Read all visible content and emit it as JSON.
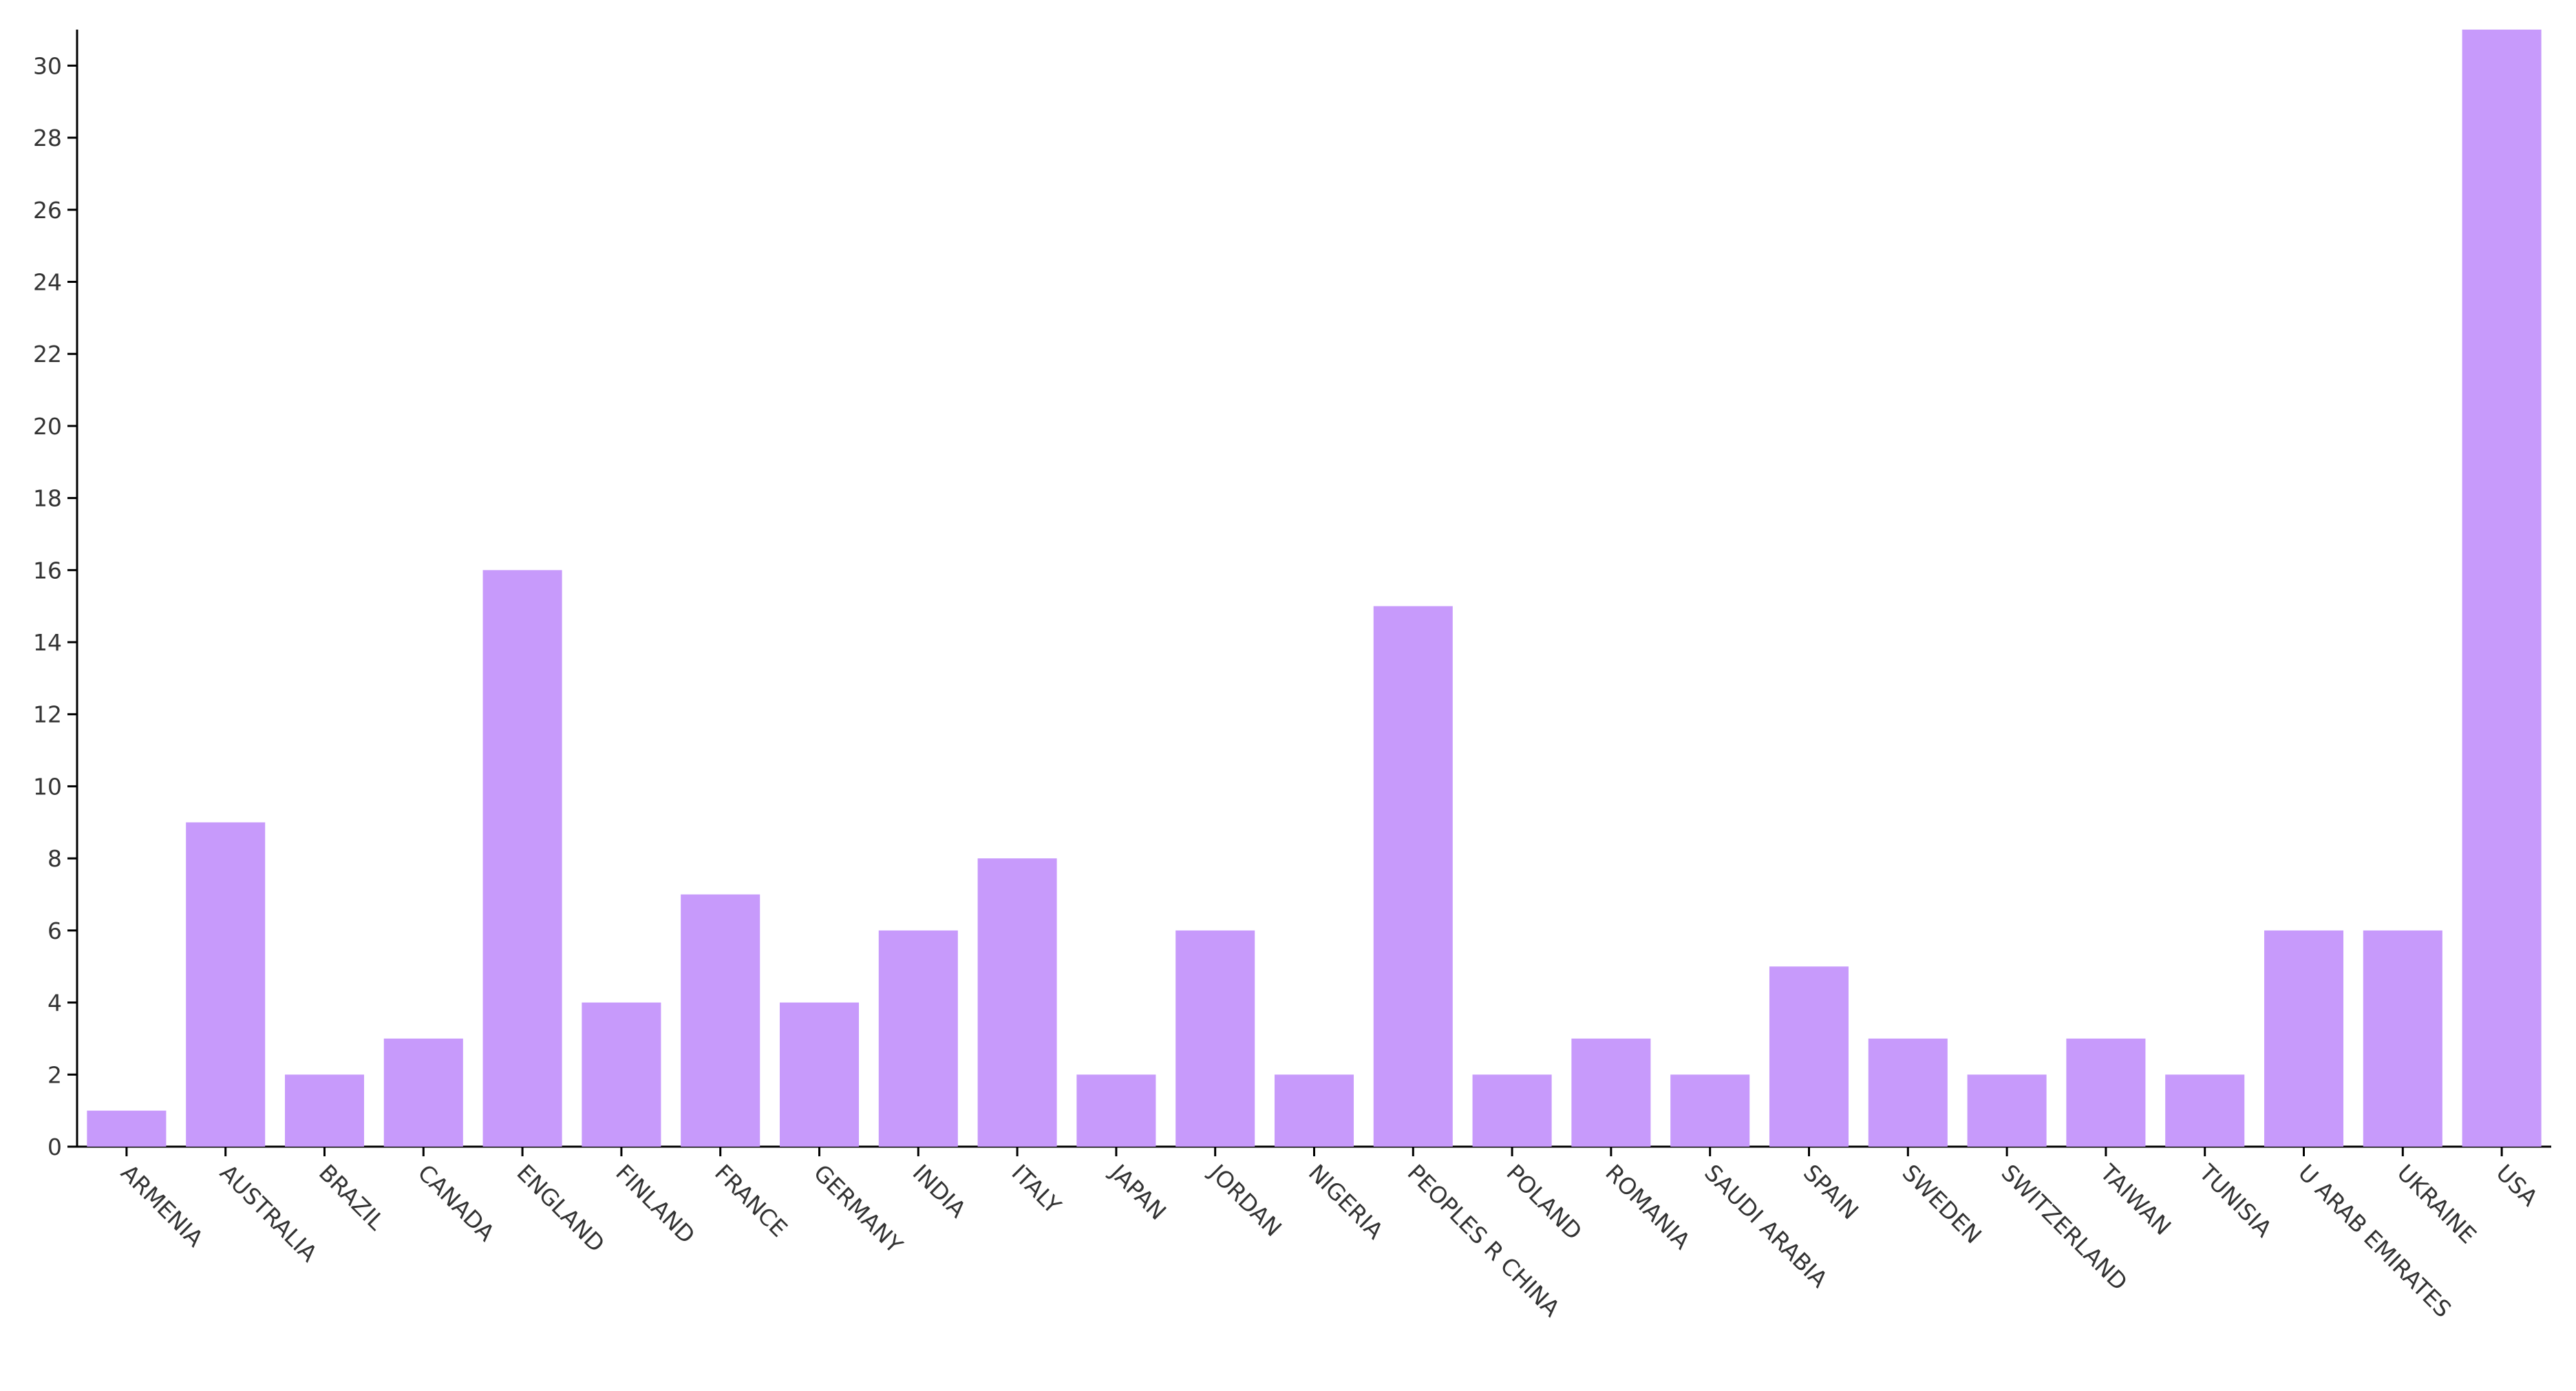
{
  "chart_data": {
    "type": "bar",
    "categories": [
      "ARMENIA",
      "AUSTRALIA",
      "BRAZIL",
      "CANADA",
      "ENGLAND",
      "FINLAND",
      "FRANCE",
      "GERMANY",
      "INDIA",
      "ITALY",
      "JAPAN",
      "JORDAN",
      "NIGERIA",
      "PEOPLES R CHINA",
      "POLAND",
      "ROMANIA",
      "SAUDI ARABIA",
      "SPAIN",
      "SWEDEN",
      "SWITZERLAND",
      "TAIWAN",
      "TUNISIA",
      "U ARAB EMIRATES",
      "UKRAINE",
      "USA"
    ],
    "values": [
      1,
      9,
      2,
      3,
      16,
      4,
      7,
      4,
      6,
      8,
      2,
      6,
      2,
      15,
      2,
      3,
      2,
      5,
      3,
      2,
      3,
      2,
      6,
      6,
      31
    ],
    "color": "#c79afb",
    "ylim": [
      0,
      31
    ],
    "yticks": [
      0,
      2,
      4,
      6,
      8,
      10,
      12,
      14,
      16,
      18,
      20,
      22,
      24,
      26,
      28,
      30
    ],
    "grid": false
  }
}
